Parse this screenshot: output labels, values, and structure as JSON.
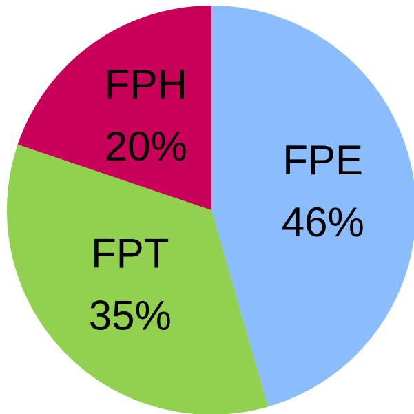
{
  "chart_data": {
    "type": "pie",
    "categories": [
      "FPE",
      "FPT",
      "FPH"
    ],
    "values": [
      46,
      35,
      20
    ],
    "value_labels": [
      "46%",
      "35%",
      "20%"
    ],
    "colors": [
      "#8bbcfb",
      "#92d050",
      "#c8005a"
    ]
  }
}
